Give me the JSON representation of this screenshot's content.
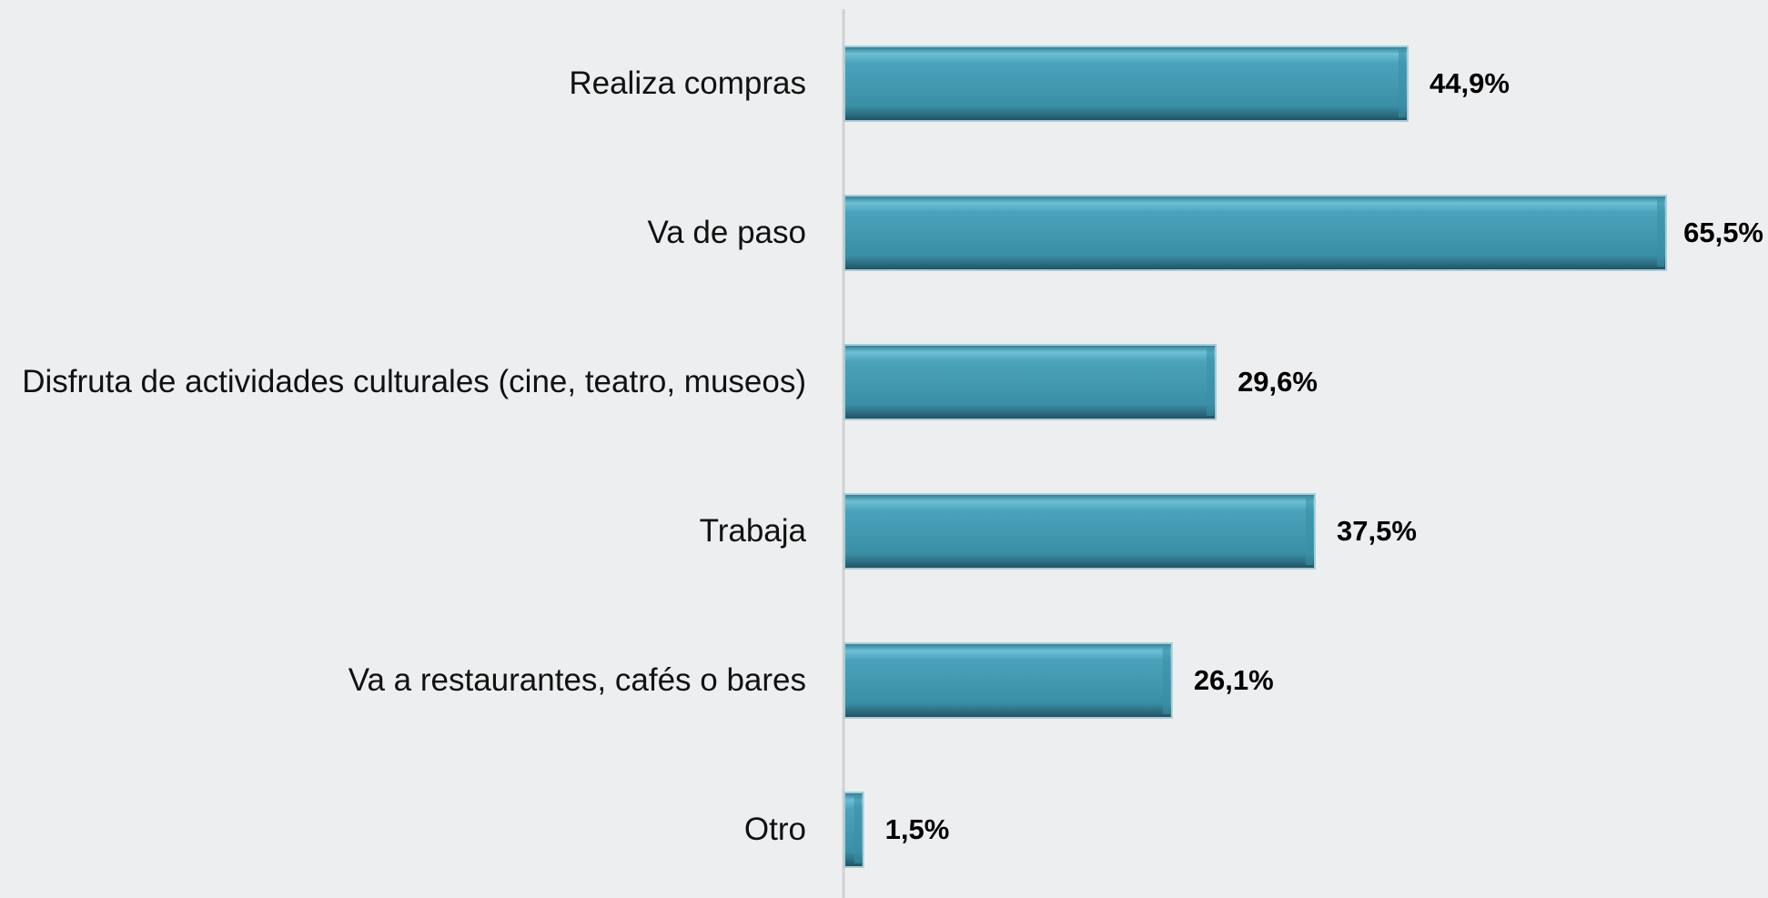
{
  "chart_data": {
    "type": "bar",
    "orientation": "horizontal",
    "categories": [
      "Realiza compras",
      "Va de paso",
      "Disfruta de actividades culturales (cine, teatro, museos)",
      "Trabaja",
      "Va a restaurantes, cafés o bares",
      "Otro"
    ],
    "values": [
      44.9,
      65.5,
      29.6,
      37.5,
      26.1,
      1.5
    ],
    "value_labels": [
      "44,9%",
      "65,5%",
      "29,6%",
      "37,5%",
      "26,1%",
      "1,5%"
    ],
    "color": "#3a8fa6"
  }
}
